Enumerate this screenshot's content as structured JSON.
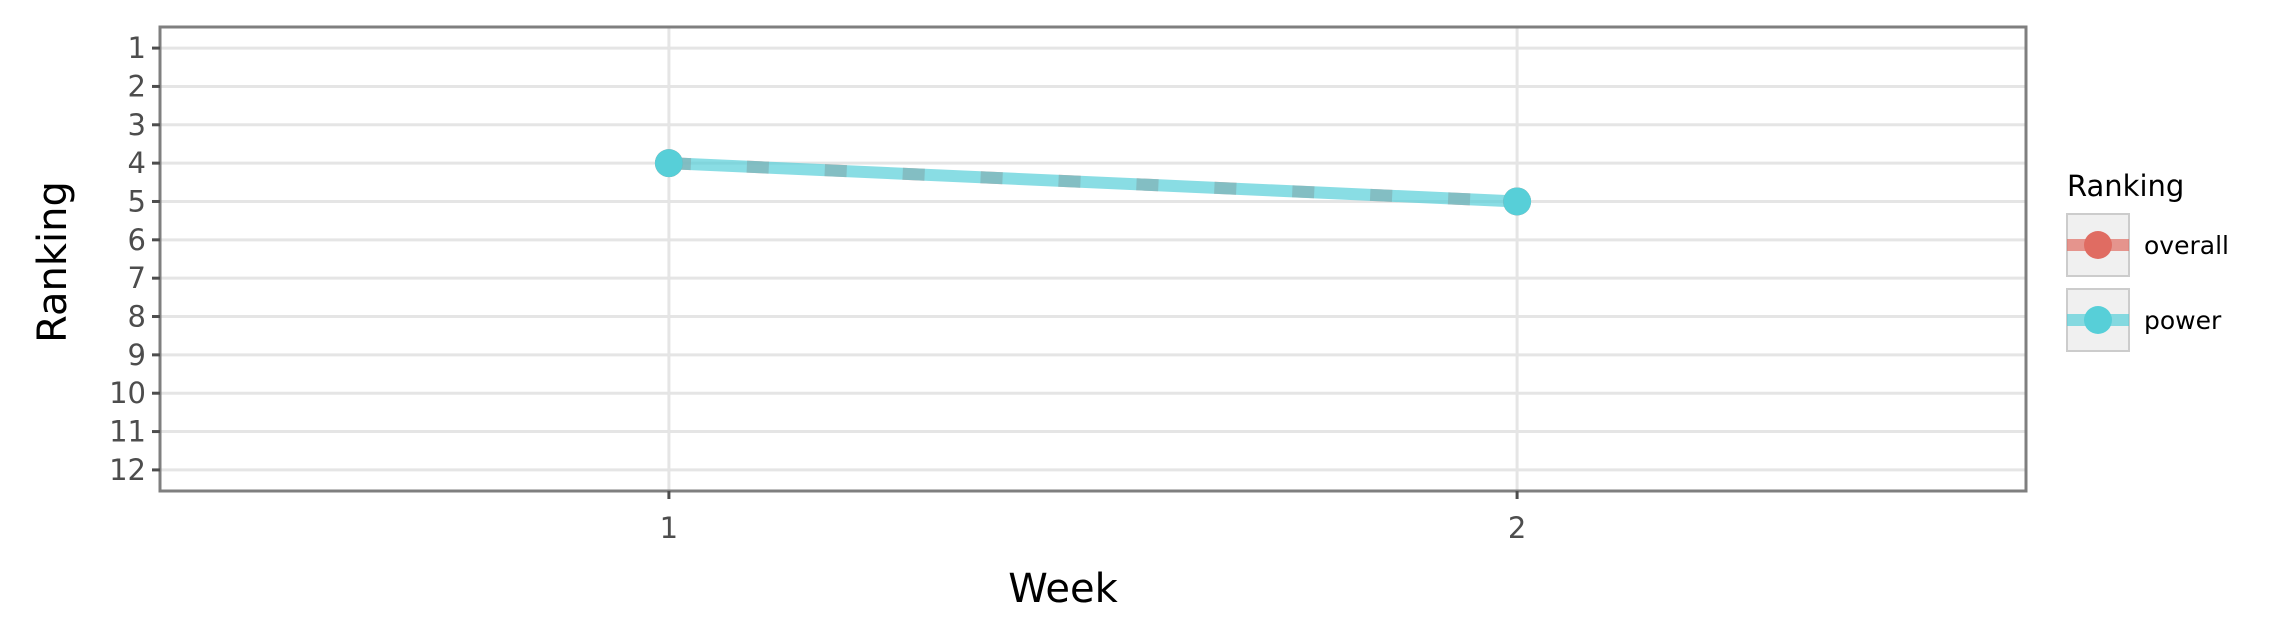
{
  "chart_data": {
    "type": "line",
    "xlabel": "Week",
    "ylabel": "Ranking",
    "x": [
      1,
      2
    ],
    "xlim": [
      0.4,
      2.6
    ],
    "x_ticks": [
      "1",
      "2"
    ],
    "ylim": [
      12.55,
      0.45
    ],
    "y_reversed": true,
    "y_ticks": [
      "1",
      "2",
      "3",
      "4",
      "5",
      "6",
      "7",
      "8",
      "9",
      "10",
      "11",
      "12"
    ],
    "grid": true,
    "legend": {
      "title": "Ranking",
      "position": "right"
    },
    "series": [
      {
        "name": "overall",
        "values": [
          4,
          5
        ],
        "color": "#e06c62",
        "line_style": "dashed",
        "marker": "circle"
      },
      {
        "name": "power",
        "values": [
          4,
          5
        ],
        "color": "#57cfd8",
        "line_style": "solid",
        "marker": "circle"
      }
    ]
  }
}
